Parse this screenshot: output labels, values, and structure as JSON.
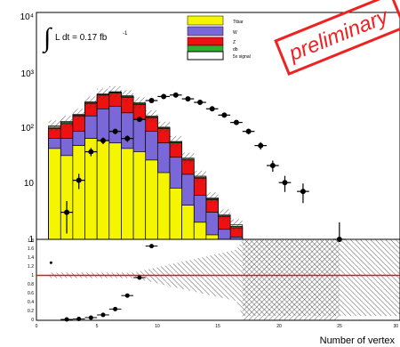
{
  "chart_data": [
    {
      "type": "bar",
      "scale": "log",
      "ylim": [
        1,
        10000
      ],
      "xlim": [
        0,
        30
      ],
      "ytick_labels": [
        "1",
        "10",
        "10²",
        "10³",
        "10⁴"
      ],
      "annotation_integral": "∫",
      "annotation_text": "L dt = 0.17 fb",
      "annotation_sup": "-1",
      "watermark": "preliminary",
      "bins_x": [
        1,
        2,
        3,
        4,
        5,
        6,
        7,
        8,
        9,
        10,
        11,
        12,
        13,
        14,
        15,
        16
      ],
      "series": [
        {
          "name": "Ttbar",
          "color": "#f5f500",
          "values": [
            40,
            30,
            45,
            60,
            55,
            50,
            40,
            35,
            25,
            15,
            8,
            4,
            2,
            1.2,
            0,
            0
          ]
        },
        {
          "name": "W",
          "color": "#7b68d8",
          "values": [
            60,
            60,
            80,
            150,
            200,
            220,
            170,
            130,
            80,
            50,
            28,
            14,
            6,
            3,
            1.5,
            1.1
          ]
        },
        {
          "name": "Z",
          "color": "#ee1111",
          "values": [
            90,
            110,
            150,
            250,
            350,
            380,
            320,
            240,
            140,
            90,
            50,
            25,
            12,
            5,
            2.5,
            1.6
          ]
        },
        {
          "name": "db",
          "color": "#30b030",
          "values": [
            95,
            115,
            155,
            260,
            360,
            390,
            330,
            250,
            145,
            93,
            52,
            26,
            12.5,
            5.2,
            2.6,
            1.7
          ]
        },
        {
          "name": "5x signal",
          "color": "#ffffff",
          "values": [
            100,
            120,
            160,
            265,
            365,
            400,
            340,
            255,
            150,
            95,
            53,
            27,
            13,
            5.4,
            2.7,
            1.8
          ]
        }
      ],
      "data_points": {
        "x": [
          2.5,
          3.5,
          4.5,
          5.5,
          6.5,
          7.5,
          8.5,
          9.5,
          10.5,
          11.5,
          12.5,
          13.5,
          14.5,
          15.5,
          16.5,
          17.5,
          18.5,
          19.5,
          20.5,
          22,
          25
        ],
        "y": [
          3,
          11,
          35,
          55,
          80,
          60,
          130,
          280,
          330,
          350,
          300,
          260,
          200,
          155,
          115,
          80,
          45,
          20,
          10,
          7,
          1
        ]
      },
      "legend": [
        "Ttbar",
        "W",
        "Z",
        "db",
        "5x signal"
      ]
    },
    {
      "type": "scatter",
      "ylim": [
        0,
        1.8
      ],
      "ytick_labels": [
        "0",
        "0.2",
        "0.4",
        "0.6",
        "0.8",
        "1",
        "1.2",
        "1.4",
        "1.6",
        "1.8"
      ],
      "xtick_labels": [
        "0",
        "5",
        "10",
        "15",
        "20",
        "25",
        "30"
      ],
      "xlabel": "Number of vertex",
      "reference_line": 1.0,
      "ratio_points": {
        "x": [
          2.5,
          3.5,
          4.5,
          5.5,
          6.5,
          7.5,
          8.5,
          9.5
        ],
        "y": [
          0.02,
          0.03,
          0.06,
          0.12,
          0.25,
          0.55,
          0.95,
          1.65
        ]
      },
      "ratio_edge_point": {
        "x": 1.2,
        "y": 1.28
      }
    }
  ]
}
